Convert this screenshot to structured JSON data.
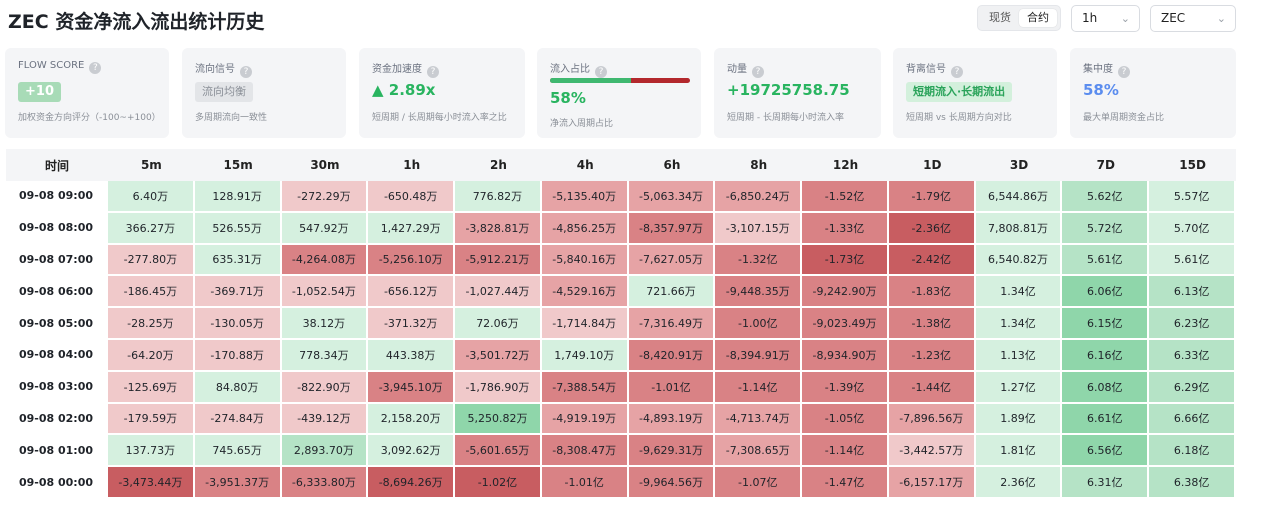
{
  "title": "ZEC 资金净流入流出统计历史",
  "market_toggle": {
    "options": [
      "现货",
      "合约"
    ],
    "active": "合约"
  },
  "interval_select": {
    "value": "1h"
  },
  "symbol_select": {
    "value": "ZEC"
  },
  "cards": {
    "flow_score": {
      "label": "FLOW SCORE",
      "value": "+10",
      "sub": "加权资金方向评分（-100~+100）"
    },
    "flow_signal": {
      "label": "流向信号",
      "value": "流向均衡",
      "sub": "多周期流向一致性"
    },
    "acceleration": {
      "label": "资金加速度",
      "value": "▲ 2.89x",
      "sub": "短周期 / 长周期每小时流入率之比"
    },
    "inflow_ratio": {
      "label": "流入占比",
      "value": "58%",
      "ratio": 0.58,
      "sub": "净流入周期占比"
    },
    "momentum": {
      "label": "动量",
      "value": "+19725758.75",
      "sub": "短周期 - 长周期每小时流入率"
    },
    "divergence": {
      "label": "背离信号",
      "value": "短期流入·长期流出",
      "sub": "短周期 vs 长周期方向对比"
    },
    "concentration": {
      "label": "集中度",
      "value": "58%",
      "sub": "最大单周期资金占比"
    }
  },
  "colors": {
    "pos_light": "#d5f0df",
    "pos_mid": "#b5e3c6",
    "pos_strong": "#8fd6aa",
    "neg_light": "#f0c9ca",
    "neg_mid": "#e6a3a5",
    "neg_strong": "#d98285",
    "neg_max": "#c85d61"
  },
  "table": {
    "headers": [
      "时间",
      "5m",
      "15m",
      "30m",
      "1h",
      "2h",
      "4h",
      "6h",
      "8h",
      "12h",
      "1D",
      "3D",
      "7D",
      "15D"
    ],
    "rows": [
      {
        "time": "09-08 09:00",
        "cells": [
          {
            "v": "6.40万",
            "c": "pos_light"
          },
          {
            "v": "128.91万",
            "c": "pos_light"
          },
          {
            "v": "-272.29万",
            "c": "neg_light"
          },
          {
            "v": "-650.48万",
            "c": "neg_light"
          },
          {
            "v": "776.82万",
            "c": "pos_light"
          },
          {
            "v": "-5,135.40万",
            "c": "neg_mid"
          },
          {
            "v": "-5,063.34万",
            "c": "neg_mid"
          },
          {
            "v": "-6,850.24万",
            "c": "neg_mid"
          },
          {
            "v": "-1.52亿",
            "c": "neg_strong"
          },
          {
            "v": "-1.79亿",
            "c": "neg_strong"
          },
          {
            "v": "6,544.86万",
            "c": "pos_light"
          },
          {
            "v": "5.62亿",
            "c": "pos_mid"
          },
          {
            "v": "5.57亿",
            "c": "pos_light"
          }
        ]
      },
      {
        "time": "09-08 08:00",
        "cells": [
          {
            "v": "366.27万",
            "c": "pos_light"
          },
          {
            "v": "526.55万",
            "c": "pos_light"
          },
          {
            "v": "547.92万",
            "c": "pos_light"
          },
          {
            "v": "1,427.29万",
            "c": "pos_light"
          },
          {
            "v": "-3,828.81万",
            "c": "neg_mid"
          },
          {
            "v": "-4,856.25万",
            "c": "neg_mid"
          },
          {
            "v": "-8,357.97万",
            "c": "neg_strong"
          },
          {
            "v": "-3,107.15万",
            "c": "neg_light"
          },
          {
            "v": "-1.33亿",
            "c": "neg_strong"
          },
          {
            "v": "-2.36亿",
            "c": "neg_max"
          },
          {
            "v": "7,808.81万",
            "c": "pos_light"
          },
          {
            "v": "5.72亿",
            "c": "pos_mid"
          },
          {
            "v": "5.70亿",
            "c": "pos_light"
          }
        ]
      },
      {
        "time": "09-08 07:00",
        "cells": [
          {
            "v": "-277.80万",
            "c": "neg_light"
          },
          {
            "v": "635.31万",
            "c": "pos_light"
          },
          {
            "v": "-4,264.08万",
            "c": "neg_strong"
          },
          {
            "v": "-5,256.10万",
            "c": "neg_strong"
          },
          {
            "v": "-5,912.21万",
            "c": "neg_strong"
          },
          {
            "v": "-5,840.16万",
            "c": "neg_mid"
          },
          {
            "v": "-7,627.05万",
            "c": "neg_mid"
          },
          {
            "v": "-1.32亿",
            "c": "neg_strong"
          },
          {
            "v": "-1.73亿",
            "c": "neg_max"
          },
          {
            "v": "-2.42亿",
            "c": "neg_max"
          },
          {
            "v": "6,540.82万",
            "c": "pos_light"
          },
          {
            "v": "5.61亿",
            "c": "pos_mid"
          },
          {
            "v": "5.61亿",
            "c": "pos_light"
          }
        ]
      },
      {
        "time": "09-08 06:00",
        "cells": [
          {
            "v": "-186.45万",
            "c": "neg_light"
          },
          {
            "v": "-369.71万",
            "c": "neg_light"
          },
          {
            "v": "-1,052.54万",
            "c": "neg_light"
          },
          {
            "v": "-656.12万",
            "c": "neg_light"
          },
          {
            "v": "-1,027.44万",
            "c": "neg_light"
          },
          {
            "v": "-4,529.16万",
            "c": "neg_mid"
          },
          {
            "v": "721.66万",
            "c": "pos_light"
          },
          {
            "v": "-9,448.35万",
            "c": "neg_strong"
          },
          {
            "v": "-9,242.90万",
            "c": "neg_strong"
          },
          {
            "v": "-1.83亿",
            "c": "neg_strong"
          },
          {
            "v": "1.34亿",
            "c": "pos_light"
          },
          {
            "v": "6.06亿",
            "c": "pos_strong"
          },
          {
            "v": "6.13亿",
            "c": "pos_mid"
          }
        ]
      },
      {
        "time": "09-08 05:00",
        "cells": [
          {
            "v": "-28.25万",
            "c": "neg_light"
          },
          {
            "v": "-130.05万",
            "c": "neg_light"
          },
          {
            "v": "38.12万",
            "c": "pos_light"
          },
          {
            "v": "-371.32万",
            "c": "neg_light"
          },
          {
            "v": "72.06万",
            "c": "pos_light"
          },
          {
            "v": "-1,714.84万",
            "c": "neg_light"
          },
          {
            "v": "-7,316.49万",
            "c": "neg_mid"
          },
          {
            "v": "-1.00亿",
            "c": "neg_strong"
          },
          {
            "v": "-9,023.49万",
            "c": "neg_strong"
          },
          {
            "v": "-1.38亿",
            "c": "neg_strong"
          },
          {
            "v": "1.34亿",
            "c": "pos_light"
          },
          {
            "v": "6.15亿",
            "c": "pos_strong"
          },
          {
            "v": "6.23亿",
            "c": "pos_mid"
          }
        ]
      },
      {
        "time": "09-08 04:00",
        "cells": [
          {
            "v": "-64.20万",
            "c": "neg_light"
          },
          {
            "v": "-170.88万",
            "c": "neg_light"
          },
          {
            "v": "778.34万",
            "c": "pos_light"
          },
          {
            "v": "443.38万",
            "c": "pos_light"
          },
          {
            "v": "-3,501.72万",
            "c": "neg_mid"
          },
          {
            "v": "1,749.10万",
            "c": "pos_light"
          },
          {
            "v": "-8,420.91万",
            "c": "neg_strong"
          },
          {
            "v": "-8,394.91万",
            "c": "neg_strong"
          },
          {
            "v": "-8,934.90万",
            "c": "neg_strong"
          },
          {
            "v": "-1.23亿",
            "c": "neg_strong"
          },
          {
            "v": "1.13亿",
            "c": "pos_light"
          },
          {
            "v": "6.16亿",
            "c": "pos_strong"
          },
          {
            "v": "6.33亿",
            "c": "pos_mid"
          }
        ]
      },
      {
        "time": "09-08 03:00",
        "cells": [
          {
            "v": "-125.69万",
            "c": "neg_light"
          },
          {
            "v": "84.80万",
            "c": "pos_light"
          },
          {
            "v": "-822.90万",
            "c": "neg_light"
          },
          {
            "v": "-3,945.10万",
            "c": "neg_strong"
          },
          {
            "v": "-1,786.90万",
            "c": "neg_light"
          },
          {
            "v": "-7,388.54万",
            "c": "neg_strong"
          },
          {
            "v": "-1.01亿",
            "c": "neg_strong"
          },
          {
            "v": "-1.14亿",
            "c": "neg_strong"
          },
          {
            "v": "-1.39亿",
            "c": "neg_strong"
          },
          {
            "v": "-1.44亿",
            "c": "neg_strong"
          },
          {
            "v": "1.27亿",
            "c": "pos_light"
          },
          {
            "v": "6.08亿",
            "c": "pos_strong"
          },
          {
            "v": "6.29亿",
            "c": "pos_mid"
          }
        ]
      },
      {
        "time": "09-08 02:00",
        "cells": [
          {
            "v": "-179.59万",
            "c": "neg_light"
          },
          {
            "v": "-274.84万",
            "c": "neg_light"
          },
          {
            "v": "-439.12万",
            "c": "neg_light"
          },
          {
            "v": "2,158.20万",
            "c": "pos_light"
          },
          {
            "v": "5,250.82万",
            "c": "pos_strong"
          },
          {
            "v": "-4,919.19万",
            "c": "neg_mid"
          },
          {
            "v": "-4,893.19万",
            "c": "neg_mid"
          },
          {
            "v": "-4,713.74万",
            "c": "neg_mid"
          },
          {
            "v": "-1.05亿",
            "c": "neg_strong"
          },
          {
            "v": "-7,896.56万",
            "c": "neg_mid"
          },
          {
            "v": "1.89亿",
            "c": "pos_light"
          },
          {
            "v": "6.61亿",
            "c": "pos_strong"
          },
          {
            "v": "6.66亿",
            "c": "pos_mid"
          }
        ]
      },
      {
        "time": "09-08 01:00",
        "cells": [
          {
            "v": "137.73万",
            "c": "pos_light"
          },
          {
            "v": "745.65万",
            "c": "pos_light"
          },
          {
            "v": "2,893.70万",
            "c": "pos_mid"
          },
          {
            "v": "3,092.62万",
            "c": "pos_light"
          },
          {
            "v": "-5,601.65万",
            "c": "neg_strong"
          },
          {
            "v": "-8,308.47万",
            "c": "neg_strong"
          },
          {
            "v": "-9,629.31万",
            "c": "neg_strong"
          },
          {
            "v": "-7,308.65万",
            "c": "neg_mid"
          },
          {
            "v": "-1.14亿",
            "c": "neg_strong"
          },
          {
            "v": "-3,442.57万",
            "c": "neg_light"
          },
          {
            "v": "1.81亿",
            "c": "pos_light"
          },
          {
            "v": "6.56亿",
            "c": "pos_strong"
          },
          {
            "v": "6.18亿",
            "c": "pos_mid"
          }
        ]
      },
      {
        "time": "09-08 00:00",
        "cells": [
          {
            "v": "-3,473.44万",
            "c": "neg_max"
          },
          {
            "v": "-3,951.37万",
            "c": "neg_strong"
          },
          {
            "v": "-6,333.80万",
            "c": "neg_strong"
          },
          {
            "v": "-8,694.26万",
            "c": "neg_max"
          },
          {
            "v": "-1.02亿",
            "c": "neg_max"
          },
          {
            "v": "-1.01亿",
            "c": "neg_strong"
          },
          {
            "v": "-9,964.56万",
            "c": "neg_strong"
          },
          {
            "v": "-1.07亿",
            "c": "neg_strong"
          },
          {
            "v": "-1.47亿",
            "c": "neg_strong"
          },
          {
            "v": "-6,157.17万",
            "c": "neg_mid"
          },
          {
            "v": "2.36亿",
            "c": "pos_light"
          },
          {
            "v": "6.31亿",
            "c": "pos_mid"
          },
          {
            "v": "6.38亿",
            "c": "pos_mid"
          }
        ]
      }
    ]
  }
}
